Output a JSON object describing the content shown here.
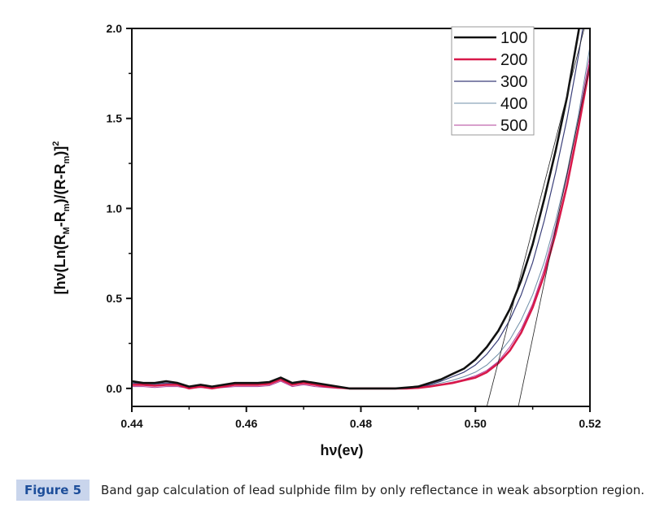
{
  "chart_data": {
    "type": "line",
    "xlabel": "hν(ev)",
    "ylabel_parts": [
      "[hν(Ln(R",
      "M",
      "-R",
      "m",
      ")/(R-R",
      "m",
      ")]",
      "2"
    ],
    "xlim": [
      0.44,
      0.52
    ],
    "ylim": [
      -0.1,
      2.0
    ],
    "xticks": [
      "0.44",
      "0.46",
      "0.48",
      "0.50",
      "0.52"
    ],
    "xtick_values": [
      0.44,
      0.46,
      0.48,
      0.5,
      0.52
    ],
    "yticks": [
      "0.0",
      "0.5",
      "1.0",
      "1.5",
      "2.0"
    ],
    "ytick_values": [
      0,
      0.5,
      1.0,
      1.5,
      2.0
    ],
    "legend_position": "top-right",
    "x": [
      0.44,
      0.442,
      0.444,
      0.446,
      0.448,
      0.45,
      0.452,
      0.454,
      0.456,
      0.458,
      0.46,
      0.462,
      0.464,
      0.466,
      0.468,
      0.47,
      0.472,
      0.474,
      0.476,
      0.478,
      0.48,
      0.482,
      0.484,
      0.486,
      0.488,
      0.49,
      0.492,
      0.494,
      0.496,
      0.498,
      0.5,
      0.502,
      0.504,
      0.506,
      0.508,
      0.51,
      0.512,
      0.514,
      0.516,
      0.518,
      0.52
    ],
    "series": [
      {
        "name": "100",
        "color": "#111111",
        "width": 2.6,
        "values": [
          0.04,
          0.03,
          0.03,
          0.04,
          0.03,
          0.01,
          0.02,
          0.01,
          0.02,
          0.03,
          0.03,
          0.03,
          0.035,
          0.06,
          0.03,
          0.04,
          0.03,
          0.02,
          0.01,
          0.0,
          0,
          0,
          0,
          0,
          0.005,
          0.01,
          0.03,
          0.05,
          0.08,
          0.11,
          0.16,
          0.23,
          0.32,
          0.44,
          0.6,
          0.8,
          1.05,
          1.32,
          1.62,
          1.98,
          2.4
        ]
      },
      {
        "name": "200",
        "color": "#d8194a",
        "width": 2.6,
        "values": [
          0.02,
          0.02,
          0.015,
          0.02,
          0.02,
          0.0,
          0.01,
          0.0,
          0.01,
          0.02,
          0.02,
          0.02,
          0.025,
          0.05,
          0.02,
          0.03,
          0.02,
          0.01,
          0.005,
          0.0,
          0,
          0,
          0,
          0,
          0,
          0.003,
          0.01,
          0.02,
          0.03,
          0.045,
          0.06,
          0.09,
          0.14,
          0.21,
          0.31,
          0.45,
          0.63,
          0.86,
          1.13,
          1.45,
          1.8
        ]
      },
      {
        "name": "300",
        "color": "#3a3f7a",
        "width": 1.2,
        "values": [
          0.03,
          0.025,
          0.025,
          0.03,
          0.025,
          0.01,
          0.015,
          0.01,
          0.015,
          0.025,
          0.025,
          0.025,
          0.03,
          0.055,
          0.025,
          0.035,
          0.025,
          0.015,
          0.01,
          0.0,
          0,
          0,
          0,
          0,
          0.003,
          0.008,
          0.02,
          0.04,
          0.065,
          0.09,
          0.13,
          0.19,
          0.27,
          0.38,
          0.52,
          0.7,
          0.93,
          1.2,
          1.5,
          1.85,
          2.25
        ]
      },
      {
        "name": "400",
        "color": "#6f8fa8",
        "width": 1.0,
        "values": [
          0.02,
          0.02,
          0.02,
          0.025,
          0.02,
          0.005,
          0.01,
          0.005,
          0.01,
          0.02,
          0.02,
          0.02,
          0.025,
          0.05,
          0.02,
          0.03,
          0.02,
          0.01,
          0.005,
          0.0,
          0,
          0,
          0,
          0,
          0.002,
          0.005,
          0.015,
          0.03,
          0.045,
          0.065,
          0.09,
          0.13,
          0.19,
          0.27,
          0.38,
          0.52,
          0.7,
          0.93,
          1.2,
          1.52,
          1.9
        ]
      },
      {
        "name": "500",
        "color": "#b0409a",
        "width": 1.0,
        "values": [
          0.01,
          0.01,
          0.005,
          0.01,
          0.01,
          0.0,
          0.005,
          0.0,
          0.005,
          0.01,
          0.01,
          0.01,
          0.015,
          0.04,
          0.01,
          0.02,
          0.01,
          0.005,
          0.0,
          0.0,
          0,
          0,
          0,
          0,
          0,
          0.004,
          0.012,
          0.022,
          0.035,
          0.05,
          0.07,
          0.1,
          0.15,
          0.23,
          0.33,
          0.47,
          0.66,
          0.9,
          1.18,
          1.5,
          1.85
        ]
      }
    ],
    "tangent_lines": [
      {
        "from": [
          0.502,
          -0.1
        ],
        "to": [
          0.519,
          2.0
        ]
      },
      {
        "from": [
          0.5075,
          -0.1
        ],
        "to": [
          0.52,
          1.8
        ]
      }
    ]
  },
  "caption": {
    "figure_label": "Figure 5",
    "text": "Band gap calculation of lead sulphide film by only reflectance in weak absorption region."
  }
}
